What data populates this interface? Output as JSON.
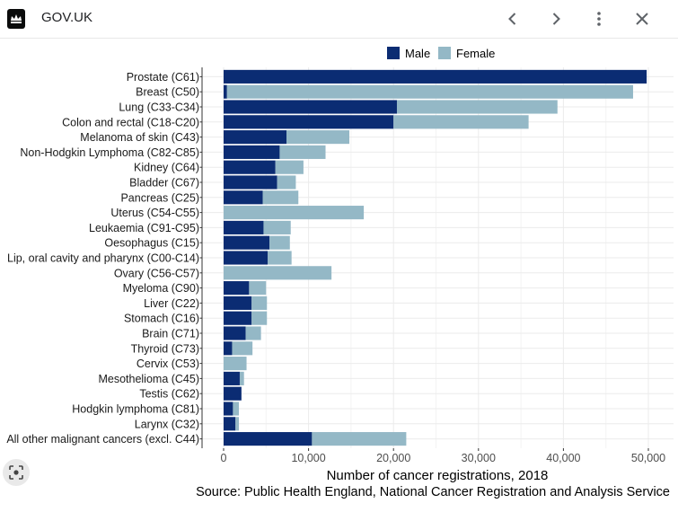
{
  "header": {
    "site_name": "GOV.UK"
  },
  "icons": {
    "logo": "crown-logo",
    "prev": "chevron-left-icon",
    "next": "chevron-right-icon",
    "more": "more-vert-icon",
    "close": "close-icon",
    "lens": "lens-search-icon"
  },
  "chart_data": {
    "type": "bar",
    "orientation": "horizontal",
    "stacked": true,
    "categories": [
      "Prostate (C61)",
      "Breast (C50)",
      "Lung (C33-C34)",
      "Colon and rectal (C18-C20)",
      "Melanoma of skin (C43)",
      "Non-Hodgkin Lymphoma (C82-C85)",
      "Kidney (C64)",
      "Bladder (C67)",
      "Pancreas (C25)",
      "Uterus (C54-C55)",
      "Leukaemia (C91-C95)",
      "Oesophagus (C15)",
      "Lip, oral cavity and pharynx (C00-C14)",
      "Ovary (C56-C57)",
      "Myeloma (C90)",
      "Liver (C22)",
      "Stomach (C16)",
      "Brain (C71)",
      "Thyroid (C73)",
      "Cervix (C53)",
      "Mesothelioma (C45)",
      "Testis (C62)",
      "Hodgkin lymphoma (C81)",
      "Larynx (C32)",
      "All other malignant cancers (excl. C44)"
    ],
    "series": [
      {
        "name": "Male",
        "color": "#0b2c73",
        "values": [
          49800,
          400,
          20400,
          20000,
          7400,
          6600,
          6100,
          6300,
          4600,
          0,
          4700,
          5400,
          5200,
          0,
          3000,
          3300,
          3300,
          2600,
          1000,
          0,
          1900,
          2100,
          1100,
          1400,
          10400
        ]
      },
      {
        "name": "Female",
        "color": "#94b8c6",
        "values": [
          0,
          47800,
          18900,
          15900,
          7400,
          5400,
          3300,
          2200,
          4200,
          16500,
          3200,
          2400,
          2800,
          12700,
          2000,
          1800,
          1800,
          1800,
          2400,
          2700,
          500,
          0,
          700,
          400,
          11100
        ]
      }
    ],
    "xlabel": "Number of cancer registrations, 2018",
    "source": "Source: Public Health England, National Cancer Registration and Analysis Service",
    "xlim": [
      0,
      52000
    ],
    "xticks": [
      0,
      10000,
      20000,
      30000,
      40000,
      50000
    ],
    "xtick_labels": [
      "0",
      "10,000",
      "20,000",
      "30,000",
      "40,000",
      "50,000"
    ],
    "legend_position": "top",
    "grid": true
  }
}
